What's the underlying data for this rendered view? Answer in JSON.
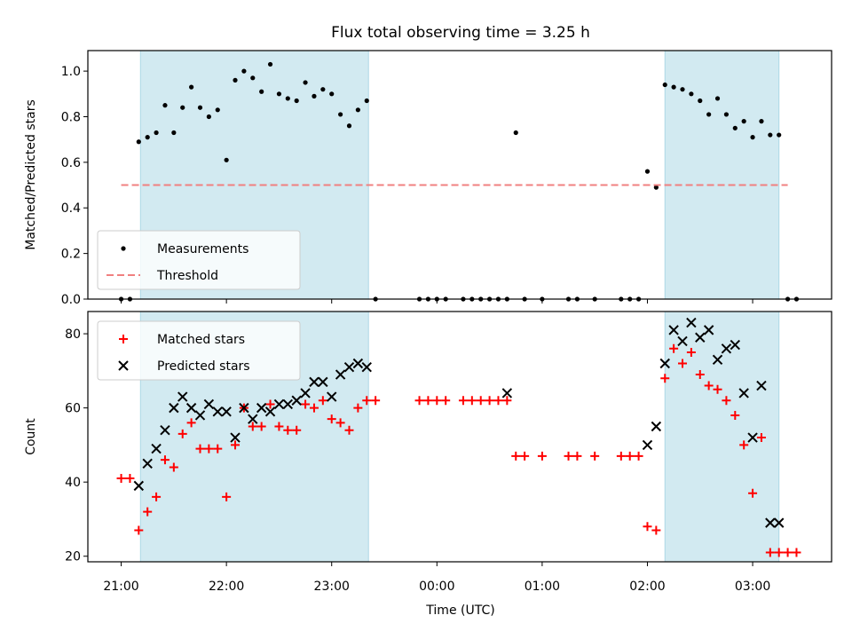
{
  "figure": {
    "title": "Flux total observing time = 3.25 h",
    "xlabel": "Time (UTC)",
    "x_tick_labels": [
      "21:00",
      "22:00",
      "23:00",
      "00:00",
      "01:00",
      "02:00",
      "03:00"
    ]
  },
  "colors": {
    "measurement": "#000000",
    "threshold": "#f08080",
    "matched": "#ff0000",
    "predicted": "#000000",
    "observing_band": "#add8e6"
  },
  "chart_data": [
    {
      "type": "scatter",
      "title": "Flux total observing time = 3.25 h",
      "xlabel": "",
      "ylabel": "Matched/Predicted stars",
      "x_axis": "time",
      "xlim": [
        "20:41",
        "03:45"
      ],
      "ylim": [
        0,
        1.09
      ],
      "y_ticks": [
        0.0,
        0.2,
        0.4,
        0.6,
        0.8,
        1.0
      ],
      "y_tick_labels": [
        "0.0",
        "0.2",
        "0.4",
        "0.6",
        "0.8",
        "1.0"
      ],
      "legend": "lower-left",
      "observing_periods": [
        [
          "21:11",
          "23:21"
        ],
        [
          "02:10",
          "03:15"
        ]
      ],
      "series": [
        {
          "name": "Measurements",
          "marker": "dot",
          "x": [
            "21:00",
            "21:05",
            "21:10",
            "21:15",
            "21:20",
            "21:25",
            "21:30",
            "21:35",
            "21:40",
            "21:45",
            "21:50",
            "21:55",
            "22:00",
            "22:05",
            "22:10",
            "22:15",
            "22:20",
            "22:25",
            "22:30",
            "22:35",
            "22:40",
            "22:45",
            "22:50",
            "22:55",
            "23:00",
            "23:05",
            "23:10",
            "23:15",
            "23:20",
            "23:25",
            "23:50",
            "23:55",
            "00:00",
            "00:05",
            "00:15",
            "00:20",
            "00:25",
            "00:30",
            "00:35",
            "00:40",
            "00:45",
            "00:50",
            "01:00",
            "01:15",
            "01:20",
            "01:30",
            "01:45",
            "01:50",
            "01:55",
            "02:00",
            "02:05",
            "02:10",
            "02:15",
            "02:20",
            "02:25",
            "02:30",
            "02:35",
            "02:40",
            "02:45",
            "02:50",
            "02:55",
            "03:00",
            "03:05",
            "03:10",
            "03:15",
            "03:20",
            "03:25"
          ],
          "y": [
            0.0,
            0.0,
            0.69,
            0.71,
            0.73,
            0.85,
            0.73,
            0.84,
            0.93,
            0.84,
            0.8,
            0.83,
            0.61,
            0.96,
            1.0,
            0.97,
            0.91,
            1.03,
            0.9,
            0.88,
            0.87,
            0.95,
            0.89,
            0.92,
            0.9,
            0.81,
            0.76,
            0.83,
            0.87,
            0.0,
            0.0,
            0.0,
            0.0,
            0.0,
            0.0,
            0.0,
            0.0,
            0.0,
            0.0,
            0.0,
            0.73,
            0.0,
            0.0,
            0.0,
            0.0,
            0.0,
            0.0,
            0.0,
            0.0,
            0.56,
            0.49,
            0.94,
            0.93,
            0.92,
            0.9,
            0.87,
            0.81,
            0.88,
            0.81,
            0.75,
            0.78,
            0.71,
            0.78,
            0.72,
            0.72,
            0.0,
            0.0
          ]
        },
        {
          "name": "Threshold",
          "style": "dashed",
          "x": [
            "21:00",
            "03:20"
          ],
          "y": [
            0.5,
            0.5
          ]
        }
      ]
    },
    {
      "type": "scatter",
      "xlabel": "Time (UTC)",
      "ylabel": "Count",
      "x_axis": "time",
      "xlim": [
        "20:41",
        "03:45"
      ],
      "ylim": [
        18.5,
        86
      ],
      "y_ticks": [
        20,
        40,
        60,
        80
      ],
      "y_tick_labels": [
        "20",
        "40",
        "60",
        "80"
      ],
      "legend": "upper-left",
      "observing_periods": [
        [
          "21:11",
          "23:21"
        ],
        [
          "02:10",
          "03:15"
        ]
      ],
      "series": [
        {
          "name": "Matched stars",
          "marker": "plus",
          "x": [
            "21:00",
            "21:05",
            "21:10",
            "21:15",
            "21:20",
            "21:25",
            "21:30",
            "21:35",
            "21:40",
            "21:45",
            "21:50",
            "21:55",
            "22:00",
            "22:05",
            "22:10",
            "22:15",
            "22:20",
            "22:25",
            "22:30",
            "22:35",
            "22:40",
            "22:45",
            "22:50",
            "22:55",
            "23:00",
            "23:05",
            "23:10",
            "23:15",
            "23:20",
            "23:25",
            "23:50",
            "23:55",
            "00:00",
            "00:05",
            "00:15",
            "00:20",
            "00:25",
            "00:30",
            "00:35",
            "00:40",
            "00:45",
            "00:50",
            "01:00",
            "01:15",
            "01:20",
            "01:30",
            "01:45",
            "01:50",
            "01:55",
            "02:00",
            "02:05",
            "02:10",
            "02:15",
            "02:20",
            "02:25",
            "02:30",
            "02:35",
            "02:40",
            "02:45",
            "02:50",
            "02:55",
            "03:00",
            "03:05",
            "03:10",
            "03:15",
            "03:20",
            "03:25"
          ],
          "y": [
            41,
            41,
            27,
            32,
            36,
            46,
            44,
            53,
            56,
            49,
            49,
            49,
            36,
            50,
            60,
            55,
            55,
            61,
            55,
            54,
            54,
            61,
            60,
            62,
            57,
            56,
            54,
            60,
            62,
            62,
            62,
            62,
            62,
            62,
            62,
            62,
            62,
            62,
            62,
            62,
            47,
            47,
            47,
            47,
            47,
            47,
            47,
            47,
            47,
            28,
            27,
            68,
            76,
            72,
            75,
            69,
            66,
            65,
            62,
            58,
            50,
            37,
            52,
            21,
            21,
            21,
            21
          ]
        },
        {
          "name": "Predicted stars",
          "marker": "x",
          "x": [
            "21:10",
            "21:15",
            "21:20",
            "21:25",
            "21:30",
            "21:35",
            "21:40",
            "21:45",
            "21:50",
            "21:55",
            "22:00",
            "22:05",
            "22:10",
            "22:15",
            "22:20",
            "22:25",
            "22:30",
            "22:35",
            "22:40",
            "22:45",
            "22:50",
            "22:55",
            "23:00",
            "23:05",
            "23:10",
            "23:15",
            "23:20",
            "00:40",
            "02:00",
            "02:05",
            "02:10",
            "02:15",
            "02:20",
            "02:25",
            "02:30",
            "02:35",
            "02:40",
            "02:45",
            "02:50",
            "02:55",
            "03:00",
            "03:05",
            "03:10",
            "03:15"
          ],
          "y": [
            39,
            45,
            49,
            54,
            60,
            63,
            60,
            58,
            61,
            59,
            59,
            52,
            60,
            57,
            60,
            59,
            61,
            61,
            62,
            64,
            67,
            67,
            63,
            69,
            71,
            72,
            71,
            64,
            50,
            55,
            72,
            81,
            78,
            83,
            79,
            81,
            73,
            76,
            77,
            64,
            52,
            66,
            29,
            29
          ]
        }
      ]
    }
  ]
}
